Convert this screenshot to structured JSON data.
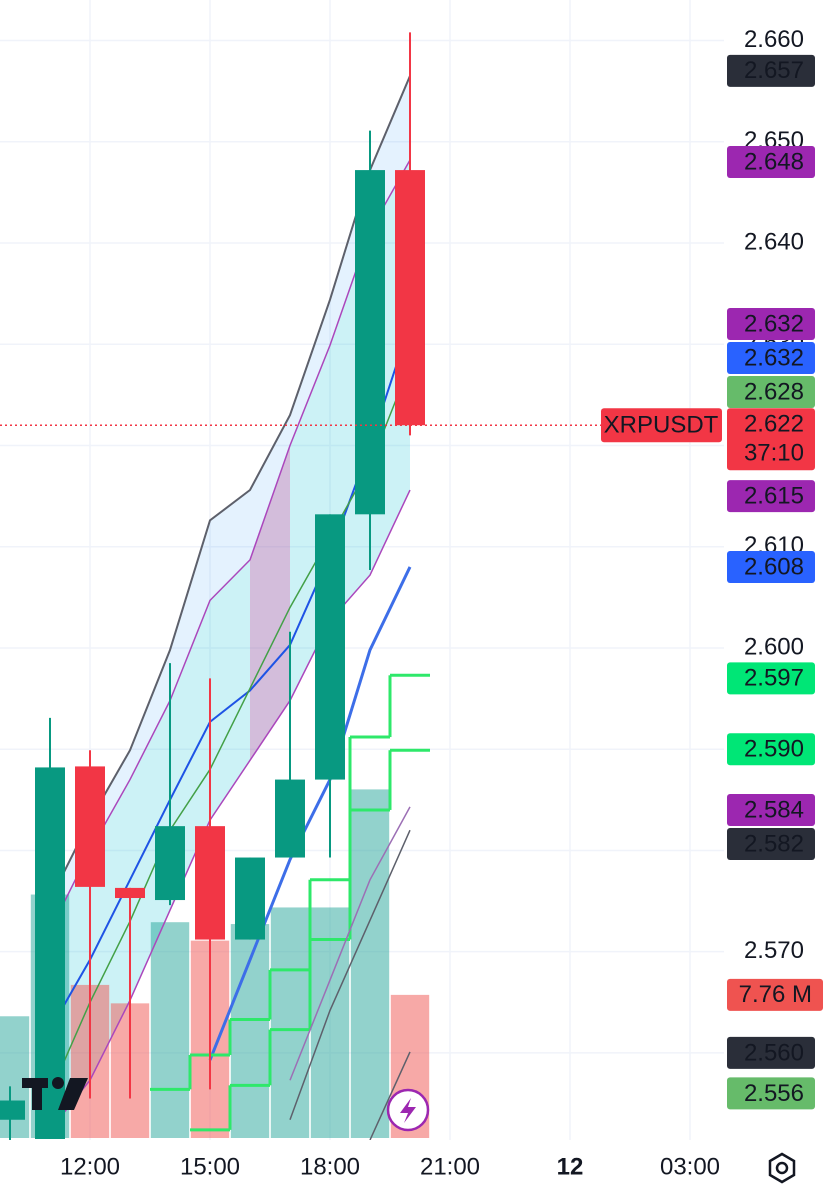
{
  "chart_data": {
    "type": "candlestick",
    "symbol": "XRPUSDT",
    "countdown": "37:10",
    "x": [
      10,
      11,
      12,
      13,
      14,
      15,
      16,
      17,
      18,
      19,
      20
    ],
    "open": [
      2.5534,
      2.5515,
      2.5883,
      2.5763,
      2.5751,
      2.5824,
      2.5712,
      2.5793,
      2.587,
      2.6132,
      2.6472
    ],
    "high": [
      2.5567,
      2.5931,
      2.5899,
      2.5763,
      2.5985,
      2.597,
      2.5793,
      2.6016,
      2.6132,
      2.6511,
      2.6608
    ],
    "low": [
      2.5514,
      2.5515,
      2.5555,
      2.5555,
      2.5746,
      2.5564,
      2.5712,
      2.5793,
      2.5793,
      2.6077,
      2.621
    ],
    "close": [
      2.5553,
      2.5882,
      2.5764,
      2.5753,
      2.5824,
      2.5712,
      2.5793,
      2.587,
      2.6132,
      2.6472,
      2.622
    ],
    "up_color": "#089981",
    "down_color": "#f23645",
    "volume": [
      6.6,
      13.2,
      8.3,
      7.3,
      11.7,
      10.7,
      11.6,
      12.5,
      12.5,
      18.9,
      7.76
    ],
    "volume_lim": [
      0,
      61.7
    ],
    "volume_badge": {
      "value": 7.76,
      "label": "7.76 M"
    },
    "xlim": [
      9.75,
      27.85
    ],
    "xticks": [
      {
        "value": 12,
        "label": "12:00"
      },
      {
        "value": 15,
        "label": "15:00"
      },
      {
        "value": 18,
        "label": "18:00"
      },
      {
        "value": 21,
        "label": "21:00"
      },
      {
        "value": 24,
        "label": "12"
      },
      {
        "value": 27,
        "label": "03:00"
      }
    ],
    "ylim": [
      2.5514,
      2.664
    ],
    "yticks": [
      {
        "value": 2.56,
        "label": "2.560"
      },
      {
        "value": 2.57,
        "label": "2.570"
      },
      {
        "value": 2.58,
        "label": "2.580"
      },
      {
        "value": 2.59,
        "label": "2.590"
      },
      {
        "value": 2.6,
        "label": "2.600"
      },
      {
        "value": 2.61,
        "label": "2.610"
      },
      {
        "value": 2.62,
        "label": "2.620"
      },
      {
        "value": 2.63,
        "label": "2.630"
      },
      {
        "value": 2.64,
        "label": "2.640"
      },
      {
        "value": 2.65,
        "label": "2.650"
      },
      {
        "value": 2.66,
        "label": "2.660"
      }
    ],
    "grid": true,
    "lines": [
      {
        "color": "#5d606b",
        "width": 2,
        "values": [
          null,
          2.5751,
          2.583,
          2.5899,
          2.5998,
          2.6126,
          2.6156,
          2.623,
          2.6344,
          2.6472,
          2.6565
        ]
      },
      {
        "color": "#ab47bc",
        "width": 1.5,
        "values": [
          null,
          2.5721,
          2.58,
          2.587,
          2.5948,
          2.6047,
          2.6087,
          2.62,
          2.6299,
          2.6412,
          2.6482
        ]
      },
      {
        "color": "#1e53e5",
        "width": 2,
        "values": [
          null,
          2.5623,
          2.5692,
          2.5771,
          2.585,
          2.5927,
          2.5958,
          2.6003,
          2.6092,
          2.62,
          2.632
        ]
      },
      {
        "color": "#43a047",
        "width": 1.5,
        "values": [
          null,
          2.556,
          2.565,
          2.573,
          2.582,
          2.588,
          2.596,
          2.604,
          2.611,
          2.618,
          2.628
        ]
      },
      {
        "color": "#ab47bc",
        "width": 1.5,
        "values": [
          null,
          2.5524,
          2.5573,
          2.5652,
          2.5741,
          2.583,
          2.5889,
          2.5948,
          2.6027,
          2.6072,
          2.6156
        ]
      },
      {
        "color": "#3d6ee8",
        "width": 3,
        "values": [
          null,
          null,
          null,
          null,
          null,
          2.5593,
          2.5692,
          2.5791,
          2.587,
          2.5998,
          2.608
        ]
      },
      {
        "color": "#2ee86a",
        "width": 3,
        "step": true,
        "values": [
          null,
          null,
          null,
          null,
          2.5564,
          2.5598,
          2.5633,
          2.5682,
          2.5712,
          2.5912,
          2.5973
        ]
      },
      {
        "color": "#2ee86a",
        "width": 3,
        "step": true,
        "values": [
          null,
          null,
          null,
          null,
          null,
          2.5524,
          2.5568,
          2.5623,
          2.5771,
          2.584,
          2.5899
        ]
      },
      {
        "color": "#9c6fb5",
        "width": 1.5,
        "values": [
          null,
          null,
          null,
          null,
          null,
          null,
          null,
          2.5573,
          2.5672,
          2.5771,
          2.5843
        ]
      },
      {
        "color": "#5d606b",
        "width": 1.5,
        "values": [
          null,
          null,
          null,
          null,
          null,
          null,
          null,
          2.5534,
          2.5642,
          2.5731,
          2.582
        ]
      },
      {
        "color": "#5d606b",
        "width": 1.5,
        "values": [
          null,
          null,
          null,
          null,
          null,
          null,
          null,
          null,
          null,
          2.5514,
          2.5601
        ]
      }
    ],
    "price_badges": [
      {
        "value": 2.657,
        "color": "#2a2e39",
        "text_color": "#ffffff"
      },
      {
        "value": 2.648,
        "color": "#9c27b0",
        "text_color": "#ffffff"
      },
      {
        "value": 2.632,
        "color": "#9c27b0",
        "text_color": "#ffffff"
      },
      {
        "value": 2.632,
        "color": "#2962ff",
        "text_color": "#ffffff"
      },
      {
        "value": 2.628,
        "color": "#66bb6a",
        "text_color": "#ffffff"
      },
      {
        "value": 2.615,
        "color": "#9c27b0",
        "text_color": "#ffffff"
      },
      {
        "value": 2.608,
        "color": "#2962ff",
        "text_color": "#ffffff"
      },
      {
        "value": 2.597,
        "color": "#00e676",
        "text_color": "#131722"
      },
      {
        "value": 2.59,
        "label": "2.590",
        "color": "#00e676",
        "text_color": "#131722"
      },
      {
        "value": 2.584,
        "color": "#9c27b0",
        "text_color": "#ffffff"
      },
      {
        "value": 2.582,
        "color": "#2a2e39",
        "text_color": "#ffffff"
      },
      {
        "value": 2.56,
        "label": "2.560",
        "color": "#2a2e39",
        "text_color": "#ffffff"
      },
      {
        "value": 2.556,
        "color": "#66bb6a",
        "text_color": "#ffffff"
      }
    ]
  }
}
